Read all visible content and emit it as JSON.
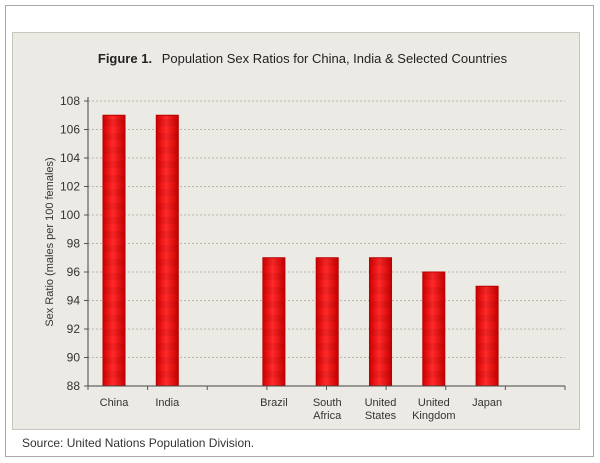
{
  "figure_label": "Figure 1.",
  "source_text": "Source: United Nations Population Division.",
  "colors": {
    "bar_fill": "#ff1a1a",
    "bar_stroke": "#b30000",
    "panel_background": "#eceae4",
    "gridline": "#b8b5ad"
  },
  "chart_data": {
    "type": "bar",
    "title": "Population Sex Ratios for China, India & Selected Countries",
    "xlabel": "",
    "ylabel": "Sex Ratio (males per 100 females)",
    "ylim": [
      88,
      108
    ],
    "y_ticks": [
      88,
      90,
      92,
      94,
      96,
      98,
      100,
      102,
      104,
      106,
      108
    ],
    "grid": true,
    "slots": 8,
    "categories": [
      {
        "label_lines": [
          "China"
        ],
        "value": 107,
        "slot": 0
      },
      {
        "label_lines": [
          "India"
        ],
        "value": 107,
        "slot": 1
      },
      {
        "label_lines": [
          "Brazil"
        ],
        "value": 97,
        "slot": 3
      },
      {
        "label_lines": [
          "South",
          "Africa"
        ],
        "value": 97,
        "slot": 4
      },
      {
        "label_lines": [
          "United",
          "States"
        ],
        "value": 97,
        "slot": 5
      },
      {
        "label_lines": [
          "United",
          "Kingdom"
        ],
        "value": 96,
        "slot": 6
      },
      {
        "label_lines": [
          "Japan"
        ],
        "value": 95,
        "slot": 7
      }
    ]
  }
}
